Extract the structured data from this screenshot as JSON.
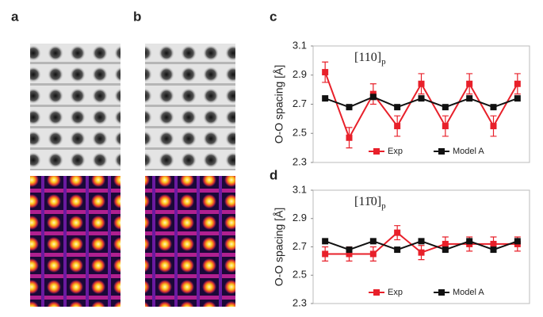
{
  "panel_labels": [
    "a",
    "b",
    "c",
    "d"
  ],
  "chart_data": [
    {
      "type": "line",
      "ylabel": "O-O spacing [Å]",
      "annotation": "[110]",
      "annotation_sub": "p",
      "categories": [
        null,
        null,
        null,
        null,
        null,
        null,
        null,
        null,
        null
      ],
      "ylim": [
        2.3,
        3.1
      ],
      "yticks": [
        2.3,
        2.5,
        2.7,
        2.9,
        3.1
      ],
      "legend": "bottom",
      "series": [
        {
          "name": "Exp",
          "color": "#e8202a",
          "values": [
            2.92,
            2.47,
            2.77,
            2.55,
            2.84,
            2.55,
            2.84,
            2.55,
            2.84
          ],
          "errors": [
            0.07,
            0.07,
            0.07,
            0.07,
            0.07,
            0.07,
            0.07,
            0.07,
            0.07
          ]
        },
        {
          "name": "Model A",
          "color": "#111111",
          "values": [
            2.74,
            2.68,
            2.75,
            2.68,
            2.74,
            2.68,
            2.74,
            2.68,
            2.74
          ]
        }
      ]
    },
    {
      "type": "line",
      "ylabel": "O-O spacing [Å]",
      "annotation": "[11̄0]",
      "annotation_sub": "p",
      "categories": [
        null,
        null,
        null,
        null,
        null,
        null,
        null,
        null,
        null
      ],
      "ylim": [
        2.3,
        3.1
      ],
      "yticks": [
        2.3,
        2.5,
        2.7,
        2.9,
        3.1
      ],
      "legend": "bottom",
      "series": [
        {
          "name": "Exp",
          "color": "#e8202a",
          "values": [
            2.65,
            2.65,
            2.65,
            2.8,
            2.66,
            2.72,
            2.72,
            2.72,
            2.72
          ],
          "errors": [
            0.05,
            0.05,
            0.05,
            0.05,
            0.05,
            0.05,
            0.05,
            0.05,
            0.05
          ]
        },
        {
          "name": "Model A",
          "color": "#111111",
          "values": [
            2.74,
            2.68,
            2.74,
            2.68,
            2.74,
            2.68,
            2.74,
            2.68,
            2.74
          ]
        }
      ]
    }
  ]
}
